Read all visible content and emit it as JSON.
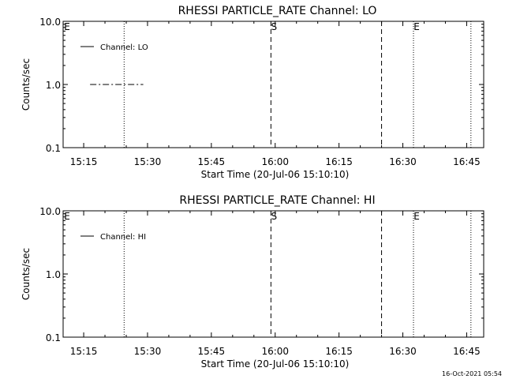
{
  "colors": {
    "background": "#ffffff",
    "foreground": "#000000"
  },
  "footer": {
    "timestamp": "16-Oct-2021 05:54"
  },
  "chart_data": [
    {
      "type": "line",
      "title": "RHESSI PARTICLE_RATE Channel: LO",
      "xlabel": "Start Time (20-Jul-06 15:10:10)",
      "ylabel": "Counts/sec",
      "y_scale": "log",
      "ylim": [
        0.1,
        10.0
      ],
      "y_ticks": [
        0.1,
        1.0,
        10.0
      ],
      "y_tick_labels": [
        "0.1",
        "1.0",
        "10.0"
      ],
      "xlim": [
        "15:10:10",
        "16:49:00"
      ],
      "x_ticks": [
        "15:15",
        "15:30",
        "15:45",
        "16:00",
        "16:15",
        "16:30",
        "16:45"
      ],
      "legend": {
        "position": "top-left",
        "entries": [
          "Channel: LO"
        ]
      },
      "series": [
        {
          "name": "Channel: LO",
          "line_style": "dash-dot",
          "x": [
            "15:16:30",
            "15:29:00"
          ],
          "values": [
            1.0,
            1.0
          ]
        }
      ],
      "markers": [
        {
          "label": "E",
          "time": "15:10:10",
          "style": "dotted"
        },
        {
          "label": "",
          "time": "15:24:30",
          "style": "dotted"
        },
        {
          "label": "S",
          "time": "15:59:00",
          "style": "dashed"
        },
        {
          "label": "",
          "time": "16:25:00",
          "style": "dashed"
        },
        {
          "label": "E",
          "time": "16:32:30",
          "style": "dotted"
        },
        {
          "label": "",
          "time": "16:46:00",
          "style": "dotted"
        }
      ]
    },
    {
      "type": "line",
      "title": "RHESSI PARTICLE_RATE Channel: HI",
      "xlabel": "Start Time (20-Jul-06 15:10:10)",
      "ylabel": "Counts/sec",
      "y_scale": "log",
      "ylim": [
        0.1,
        10.0
      ],
      "y_ticks": [
        0.1,
        1.0,
        10.0
      ],
      "y_tick_labels": [
        "0.1",
        "1.0",
        "10.0"
      ],
      "xlim": [
        "15:10:10",
        "16:49:00"
      ],
      "x_ticks": [
        "15:15",
        "15:30",
        "15:45",
        "16:00",
        "16:15",
        "16:30",
        "16:45"
      ],
      "legend": {
        "position": "top-left",
        "entries": [
          "Channel: HI"
        ]
      },
      "series": [
        {
          "name": "Channel: HI",
          "line_style": "solid",
          "x": [],
          "values": []
        }
      ],
      "markers": [
        {
          "label": "E",
          "time": "15:10:10",
          "style": "dotted"
        },
        {
          "label": "",
          "time": "15:24:30",
          "style": "dotted"
        },
        {
          "label": "S",
          "time": "15:59:00",
          "style": "dashed"
        },
        {
          "label": "",
          "time": "16:25:00",
          "style": "dashed"
        },
        {
          "label": "E",
          "time": "16:32:30",
          "style": "dotted"
        },
        {
          "label": "",
          "time": "16:46:00",
          "style": "dotted"
        }
      ]
    }
  ]
}
